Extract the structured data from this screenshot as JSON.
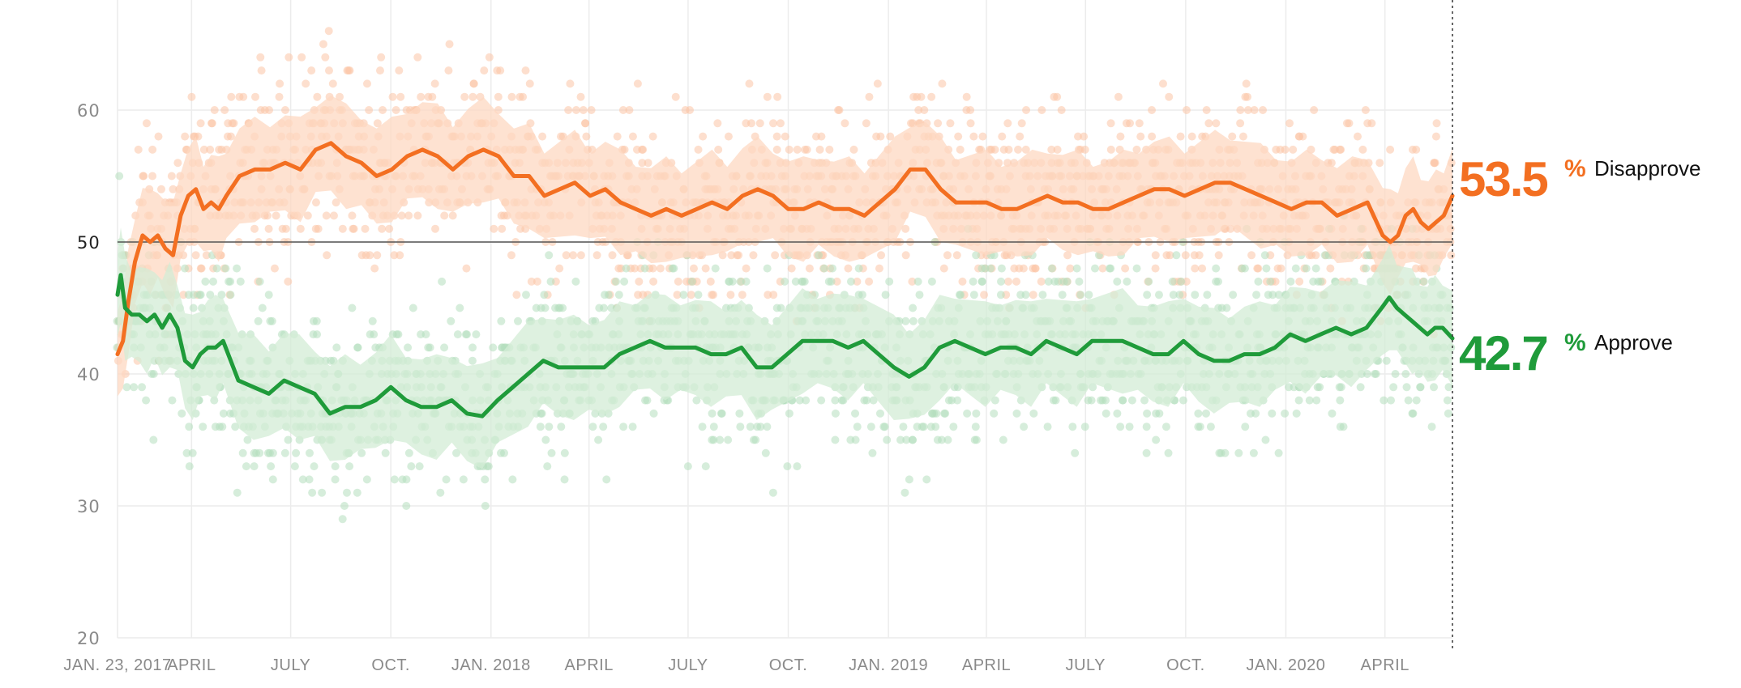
{
  "chart_data": {
    "type": "line",
    "x_range": [
      "2017-01-23",
      "2020-06-02"
    ],
    "ylim": [
      20,
      70
    ],
    "y_ticks": [
      20,
      30,
      40,
      50,
      60
    ],
    "x_ticks": [
      {
        "date": "2017-01-23",
        "label": "JAN. 23, 2017"
      },
      {
        "date": "2017-04-01",
        "label": "APRIL"
      },
      {
        "date": "2017-07-01",
        "label": "JULY"
      },
      {
        "date": "2017-10-01",
        "label": "OCT."
      },
      {
        "date": "2018-01-01",
        "label": "JAN. 2018"
      },
      {
        "date": "2018-04-01",
        "label": "APRIL"
      },
      {
        "date": "2018-07-01",
        "label": "JULY"
      },
      {
        "date": "2018-10-01",
        "label": "OCT."
      },
      {
        "date": "2019-01-01",
        "label": "JAN. 2019"
      },
      {
        "date": "2019-04-01",
        "label": "APRIL"
      },
      {
        "date": "2019-07-01",
        "label": "JULY"
      },
      {
        "date": "2019-10-01",
        "label": "OCT."
      },
      {
        "date": "2020-01-01",
        "label": "JAN. 2020"
      },
      {
        "date": "2020-04-01",
        "label": "APRIL"
      }
    ],
    "reference_line": 50,
    "grid": true,
    "legend": "end-of-line labels at right",
    "series": [
      {
        "name": "Disapprove",
        "color": "#f36f21",
        "band_color": "#fdd8c2",
        "dot_color": "#fcc5a6",
        "final_value": "53.5",
        "points": [
          [
            "2017-01-23",
            41.5
          ],
          [
            "2017-01-28",
            42.5
          ],
          [
            "2017-02-02",
            45.5
          ],
          [
            "2017-02-08",
            48.5
          ],
          [
            "2017-02-15",
            50.5
          ],
          [
            "2017-02-22",
            50.0
          ],
          [
            "2017-03-01",
            50.5
          ],
          [
            "2017-03-08",
            49.5
          ],
          [
            "2017-03-15",
            49.0
          ],
          [
            "2017-03-22",
            52.0
          ],
          [
            "2017-03-29",
            53.5
          ],
          [
            "2017-04-05",
            54.0
          ],
          [
            "2017-04-12",
            52.5
          ],
          [
            "2017-04-19",
            53.0
          ],
          [
            "2017-04-26",
            52.5
          ],
          [
            "2017-05-03",
            53.5
          ],
          [
            "2017-05-15",
            55.0
          ],
          [
            "2017-05-29",
            55.5
          ],
          [
            "2017-06-12",
            55.5
          ],
          [
            "2017-06-26",
            56.0
          ],
          [
            "2017-07-10",
            55.5
          ],
          [
            "2017-07-24",
            57.0
          ],
          [
            "2017-08-07",
            57.5
          ],
          [
            "2017-08-21",
            56.5
          ],
          [
            "2017-09-04",
            56.0
          ],
          [
            "2017-09-18",
            55.0
          ],
          [
            "2017-10-02",
            55.5
          ],
          [
            "2017-10-16",
            56.5
          ],
          [
            "2017-10-30",
            57.0
          ],
          [
            "2017-11-13",
            56.5
          ],
          [
            "2017-11-27",
            55.5
          ],
          [
            "2017-12-11",
            56.5
          ],
          [
            "2017-12-25",
            57.0
          ],
          [
            "2018-01-08",
            56.5
          ],
          [
            "2018-01-22",
            55.0
          ],
          [
            "2018-02-05",
            55.0
          ],
          [
            "2018-02-19",
            53.5
          ],
          [
            "2018-03-05",
            54.0
          ],
          [
            "2018-03-19",
            54.5
          ],
          [
            "2018-04-02",
            53.5
          ],
          [
            "2018-04-16",
            54.0
          ],
          [
            "2018-04-30",
            53.0
          ],
          [
            "2018-05-14",
            52.5
          ],
          [
            "2018-05-28",
            52.0
          ],
          [
            "2018-06-11",
            52.5
          ],
          [
            "2018-06-25",
            52.0
          ],
          [
            "2018-07-09",
            52.5
          ],
          [
            "2018-07-23",
            53.0
          ],
          [
            "2018-08-06",
            52.5
          ],
          [
            "2018-08-20",
            53.5
          ],
          [
            "2018-09-03",
            54.0
          ],
          [
            "2018-09-17",
            53.5
          ],
          [
            "2018-10-01",
            52.5
          ],
          [
            "2018-10-15",
            52.5
          ],
          [
            "2018-10-29",
            53.0
          ],
          [
            "2018-11-12",
            52.5
          ],
          [
            "2018-11-26",
            52.5
          ],
          [
            "2018-12-10",
            52.0
          ],
          [
            "2018-12-24",
            53.0
          ],
          [
            "2019-01-07",
            54.0
          ],
          [
            "2019-01-21",
            55.5
          ],
          [
            "2019-02-04",
            55.5
          ],
          [
            "2019-02-18",
            54.0
          ],
          [
            "2019-03-04",
            53.0
          ],
          [
            "2019-03-18",
            53.0
          ],
          [
            "2019-04-01",
            53.0
          ],
          [
            "2019-04-15",
            52.5
          ],
          [
            "2019-04-29",
            52.5
          ],
          [
            "2019-05-13",
            53.0
          ],
          [
            "2019-05-27",
            53.5
          ],
          [
            "2019-06-10",
            53.0
          ],
          [
            "2019-06-24",
            53.0
          ],
          [
            "2019-07-08",
            52.5
          ],
          [
            "2019-07-22",
            52.5
          ],
          [
            "2019-08-05",
            53.0
          ],
          [
            "2019-08-19",
            53.5
          ],
          [
            "2019-09-02",
            54.0
          ],
          [
            "2019-09-16",
            54.0
          ],
          [
            "2019-09-30",
            53.5
          ],
          [
            "2019-10-14",
            54.0
          ],
          [
            "2019-10-28",
            54.5
          ],
          [
            "2019-11-11",
            54.5
          ],
          [
            "2019-11-25",
            54.0
          ],
          [
            "2019-12-09",
            53.5
          ],
          [
            "2019-12-23",
            53.0
          ],
          [
            "2020-01-06",
            52.5
          ],
          [
            "2020-01-20",
            53.0
          ],
          [
            "2020-02-03",
            53.0
          ],
          [
            "2020-02-17",
            52.0
          ],
          [
            "2020-03-02",
            52.5
          ],
          [
            "2020-03-16",
            53.0
          ],
          [
            "2020-03-30",
            50.5
          ],
          [
            "2020-04-06",
            50.0
          ],
          [
            "2020-04-13",
            50.5
          ],
          [
            "2020-04-20",
            52.0
          ],
          [
            "2020-04-27",
            52.5
          ],
          [
            "2020-05-04",
            51.5
          ],
          [
            "2020-05-11",
            51.0
          ],
          [
            "2020-05-18",
            51.5
          ],
          [
            "2020-05-25",
            52.0
          ],
          [
            "2020-06-02",
            53.5
          ]
        ]
      },
      {
        "name": "Approve",
        "color": "#1f9b3a",
        "band_color": "#d3ecd6",
        "dot_color": "#b5dfbd",
        "final_value": "42.7",
        "points": [
          [
            "2017-01-23",
            46.0
          ],
          [
            "2017-01-26",
            47.5
          ],
          [
            "2017-01-30",
            45.0
          ],
          [
            "2017-02-05",
            44.5
          ],
          [
            "2017-02-12",
            44.5
          ],
          [
            "2017-02-19",
            44.0
          ],
          [
            "2017-02-26",
            44.5
          ],
          [
            "2017-03-05",
            43.5
          ],
          [
            "2017-03-12",
            44.5
          ],
          [
            "2017-03-19",
            43.5
          ],
          [
            "2017-03-26",
            41.0
          ],
          [
            "2017-04-02",
            40.5
          ],
          [
            "2017-04-09",
            41.5
          ],
          [
            "2017-04-16",
            42.0
          ],
          [
            "2017-04-23",
            42.0
          ],
          [
            "2017-04-30",
            42.5
          ],
          [
            "2017-05-14",
            39.5
          ],
          [
            "2017-05-28",
            39.0
          ],
          [
            "2017-06-11",
            38.5
          ],
          [
            "2017-06-25",
            39.5
          ],
          [
            "2017-07-09",
            39.0
          ],
          [
            "2017-07-23",
            38.5
          ],
          [
            "2017-08-06",
            37.0
          ],
          [
            "2017-08-20",
            37.5
          ],
          [
            "2017-09-03",
            37.5
          ],
          [
            "2017-09-17",
            38.0
          ],
          [
            "2017-10-01",
            39.0
          ],
          [
            "2017-10-15",
            38.0
          ],
          [
            "2017-10-29",
            37.5
          ],
          [
            "2017-11-12",
            37.5
          ],
          [
            "2017-11-26",
            38.0
          ],
          [
            "2017-12-10",
            37.0
          ],
          [
            "2017-12-24",
            36.8
          ],
          [
            "2018-01-07",
            38.0
          ],
          [
            "2018-01-21",
            39.0
          ],
          [
            "2018-02-04",
            40.0
          ],
          [
            "2018-02-18",
            41.0
          ],
          [
            "2018-03-04",
            40.5
          ],
          [
            "2018-03-18",
            40.5
          ],
          [
            "2018-04-01",
            40.5
          ],
          [
            "2018-04-15",
            40.5
          ],
          [
            "2018-04-29",
            41.5
          ],
          [
            "2018-05-13",
            42.0
          ],
          [
            "2018-05-27",
            42.5
          ],
          [
            "2018-06-10",
            42.0
          ],
          [
            "2018-06-24",
            42.0
          ],
          [
            "2018-07-08",
            42.0
          ],
          [
            "2018-07-22",
            41.5
          ],
          [
            "2018-08-05",
            41.5
          ],
          [
            "2018-08-19",
            42.0
          ],
          [
            "2018-09-02",
            40.5
          ],
          [
            "2018-09-16",
            40.5
          ],
          [
            "2018-09-30",
            41.5
          ],
          [
            "2018-10-14",
            42.5
          ],
          [
            "2018-10-28",
            42.5
          ],
          [
            "2018-11-11",
            42.5
          ],
          [
            "2018-11-25",
            42.0
          ],
          [
            "2018-12-09",
            42.5
          ],
          [
            "2018-12-23",
            41.5
          ],
          [
            "2019-01-06",
            40.5
          ],
          [
            "2019-01-20",
            39.8
          ],
          [
            "2019-02-03",
            40.5
          ],
          [
            "2019-02-17",
            42.0
          ],
          [
            "2019-03-03",
            42.5
          ],
          [
            "2019-03-17",
            42.0
          ],
          [
            "2019-03-31",
            41.5
          ],
          [
            "2019-04-14",
            42.0
          ],
          [
            "2019-04-28",
            42.0
          ],
          [
            "2019-05-12",
            41.5
          ],
          [
            "2019-05-26",
            42.5
          ],
          [
            "2019-06-09",
            42.0
          ],
          [
            "2019-06-23",
            41.5
          ],
          [
            "2019-07-07",
            42.5
          ],
          [
            "2019-07-21",
            42.5
          ],
          [
            "2019-08-04",
            42.5
          ],
          [
            "2019-08-18",
            42.0
          ],
          [
            "2019-09-01",
            41.5
          ],
          [
            "2019-09-15",
            41.5
          ],
          [
            "2019-09-29",
            42.5
          ],
          [
            "2019-10-13",
            41.5
          ],
          [
            "2019-10-27",
            41.0
          ],
          [
            "2019-11-10",
            41.0
          ],
          [
            "2019-11-24",
            41.5
          ],
          [
            "2019-12-08",
            41.5
          ],
          [
            "2019-12-22",
            42.0
          ],
          [
            "2020-01-05",
            43.0
          ],
          [
            "2020-01-19",
            42.5
          ],
          [
            "2020-02-02",
            43.0
          ],
          [
            "2020-02-16",
            43.5
          ],
          [
            "2020-03-01",
            43.0
          ],
          [
            "2020-03-15",
            43.5
          ],
          [
            "2020-03-29",
            45.0
          ],
          [
            "2020-04-05",
            45.8
          ],
          [
            "2020-04-12",
            45.0
          ],
          [
            "2020-04-19",
            44.5
          ],
          [
            "2020-04-26",
            44.0
          ],
          [
            "2020-05-03",
            43.5
          ],
          [
            "2020-05-10",
            43.0
          ],
          [
            "2020-05-17",
            43.5
          ],
          [
            "2020-05-24",
            43.5
          ],
          [
            "2020-06-02",
            42.7
          ]
        ]
      }
    ]
  }
}
